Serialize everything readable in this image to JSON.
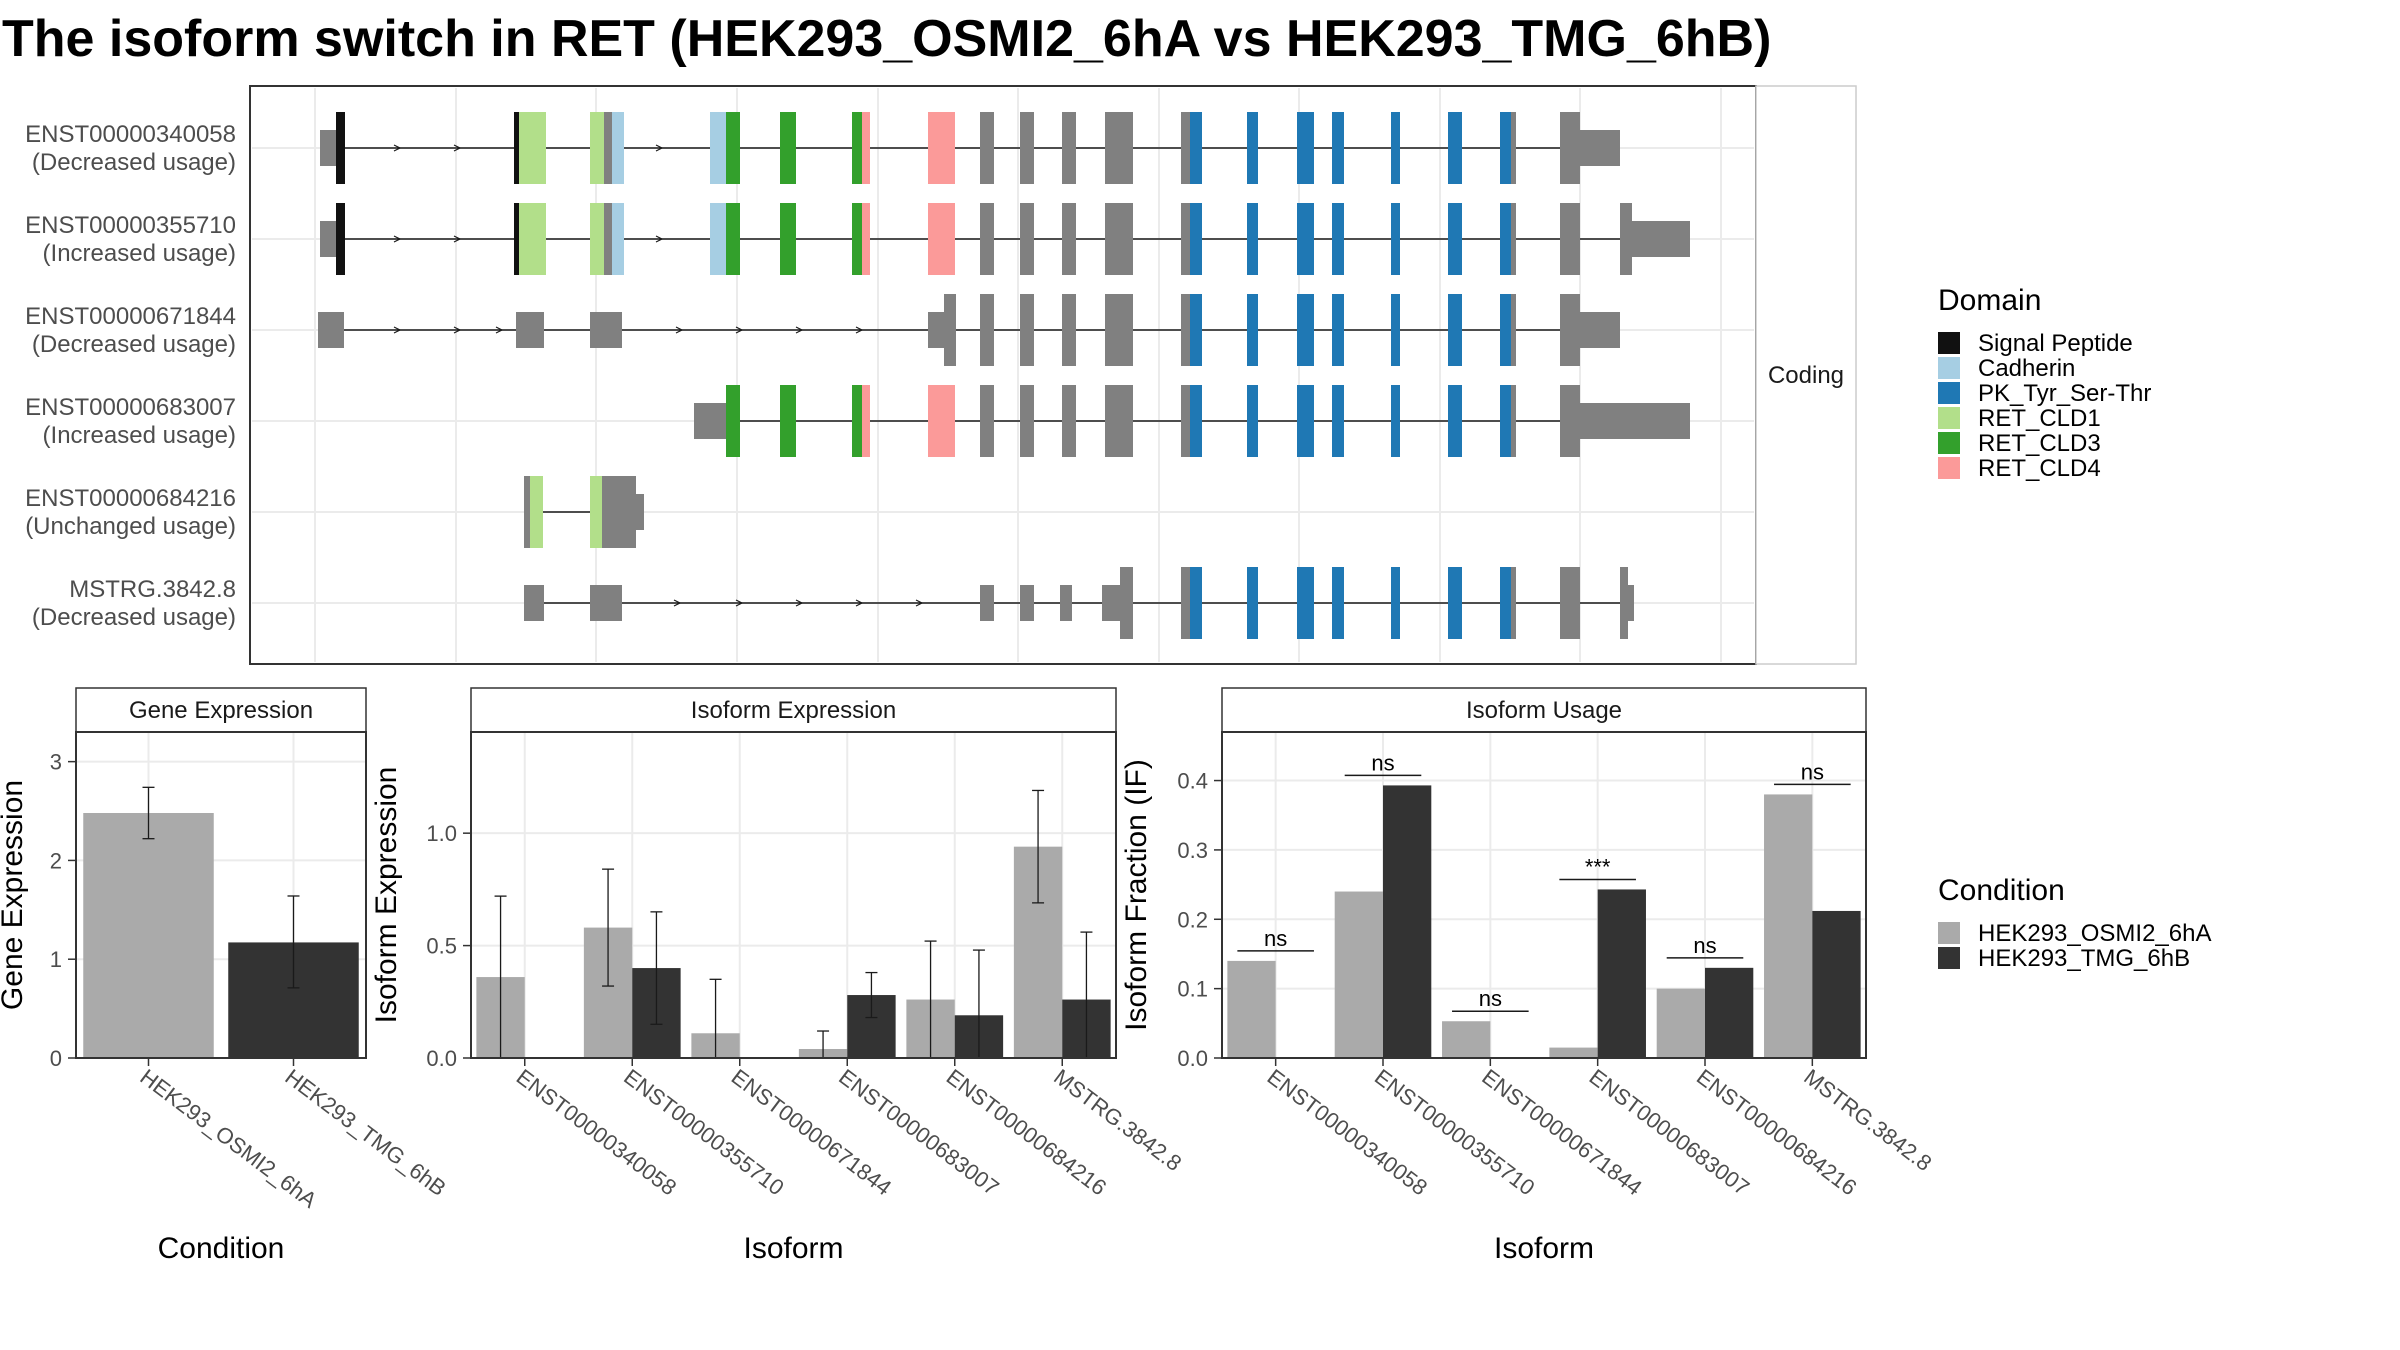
{
  "title": "The isoform switch in RET (HEK293_OSMI2_6hA vs HEK293_TMG_6hB)",
  "colors": {
    "condition_a": "#aaaaaa",
    "condition_b": "#333333",
    "exon": "#808080",
    "grid": "#ebebeb",
    "panel_border": "#333333",
    "strip_fill": "#ffffff"
  },
  "structure": {
    "facet_label": "Coding",
    "domain_legend_title": "Domain",
    "domains": [
      {
        "name": "Signal Peptide",
        "color": "#111111"
      },
      {
        "name": "Cadherin",
        "color": "#a6cee3"
      },
      {
        "name": "PK_Tyr_Ser-Thr",
        "color": "#1f78b4"
      },
      {
        "name": "RET_CLD1",
        "color": "#b2df8a"
      },
      {
        "name": "RET_CLD3",
        "color": "#33a02c"
      },
      {
        "name": "RET_CLD4",
        "color": "#fb9a99"
      }
    ],
    "isoforms": [
      {
        "id": "ENST00000340058",
        "usage": "(Decreased usage)"
      },
      {
        "id": "ENST00000355710",
        "usage": "(Increased usage)"
      },
      {
        "id": "ENST00000671844",
        "usage": "(Decreased usage)"
      },
      {
        "id": "ENST00000683007",
        "usage": "(Increased usage)"
      },
      {
        "id": "ENST00000684216",
        "usage": "(Unchanged usage)"
      },
      {
        "id": "MSTRG.3842.8",
        "usage": "(Decreased usage)"
      }
    ]
  },
  "conditions": [
    "HEK293_OSMI2_6hA",
    "HEK293_TMG_6hB"
  ],
  "condition_legend_title": "Condition",
  "chart_data": [
    {
      "type": "bar",
      "title": "Gene Expression",
      "xlabel": "Condition",
      "ylabel": "Gene Expression",
      "categories": [
        "HEK293_OSMI2_6hA",
        "HEK293_TMG_6hB"
      ],
      "values": [
        2.48,
        1.17
      ],
      "error_low": [
        2.22,
        0.71
      ],
      "error_high": [
        2.74,
        1.64
      ],
      "ylim": [
        0,
        3.3
      ],
      "yticks": [
        "0",
        "1",
        "2",
        "3"
      ]
    },
    {
      "type": "bar",
      "title": "Isoform Expression",
      "xlabel": "Isoform",
      "ylabel": "Isoform Expression",
      "categories": [
        "ENST00000340058",
        "ENST00000355710",
        "ENST00000671844",
        "ENST00000683007",
        "ENST00000684216",
        "MSTRG.3842.8"
      ],
      "series": [
        {
          "name": "HEK293_OSMI2_6hA",
          "values": [
            0.36,
            0.58,
            0.11,
            0.04,
            0.26,
            0.94
          ],
          "error_low": [
            0.0,
            0.32,
            0.0,
            0.0,
            0.0,
            0.69
          ],
          "error_high": [
            0.72,
            0.84,
            0.35,
            0.12,
            0.52,
            1.19
          ]
        },
        {
          "name": "HEK293_TMG_6hB",
          "values": [
            0.0,
            0.4,
            0.0,
            0.28,
            0.19,
            0.26
          ],
          "error_low": [
            0.0,
            0.15,
            0.0,
            0.18,
            0.0,
            0.0
          ],
          "error_high": [
            0.0,
            0.65,
            0.0,
            0.38,
            0.48,
            0.56
          ]
        }
      ],
      "ylim": [
        0,
        1.45
      ],
      "yticks": [
        "0.0",
        "0.5",
        "1.0"
      ]
    },
    {
      "type": "bar",
      "title": "Isoform Usage",
      "xlabel": "Isoform",
      "ylabel": "Isoform Fraction (IF)",
      "categories": [
        "ENST00000340058",
        "ENST00000355710",
        "ENST00000671844",
        "ENST00000683007",
        "ENST00000684216",
        "MSTRG.3842.8"
      ],
      "series": [
        {
          "name": "HEK293_OSMI2_6hA",
          "values": [
            0.14,
            0.24,
            0.053,
            0.015,
            0.1,
            0.38
          ]
        },
        {
          "name": "HEK293_TMG_6hB",
          "values": [
            0.0,
            0.393,
            0.0,
            0.243,
            0.13,
            0.212
          ]
        }
      ],
      "significance": [
        "ns",
        "ns",
        "ns",
        "***",
        "ns",
        "ns"
      ],
      "ylim": [
        0,
        0.47
      ],
      "yticks": [
        "0.0",
        "0.1",
        "0.2",
        "0.3",
        "0.4"
      ]
    }
  ]
}
